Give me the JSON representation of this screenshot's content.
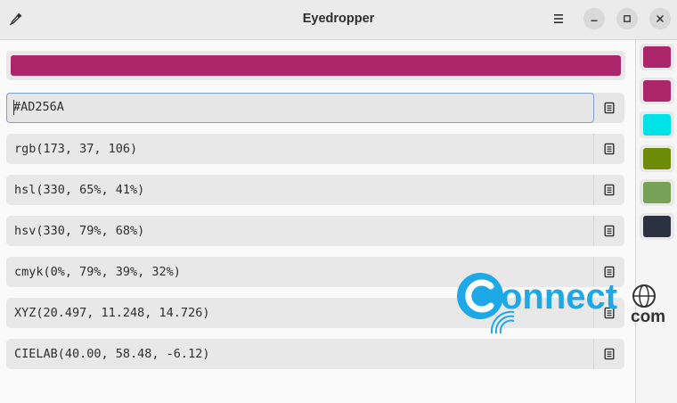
{
  "window": {
    "title": "Eyedropper",
    "icons": {
      "picker": "eyedropper-icon",
      "menu": "hamburger-menu-icon",
      "minimize": "minimize-icon",
      "maximize": "maximize-icon",
      "close": "close-icon"
    }
  },
  "current": {
    "color": "#AD256A",
    "formats": [
      {
        "name": "hex",
        "value": "#AD256A"
      },
      {
        "name": "rgb",
        "value": "rgb(173, 37, 106)"
      },
      {
        "name": "hsl",
        "value": "hsl(330, 65%, 41%)"
      },
      {
        "name": "hsv",
        "value": "hsv(330, 79%, 68%)"
      },
      {
        "name": "cmyk",
        "value": "cmyk(0%, 79%, 39%, 32%)"
      },
      {
        "name": "xyz",
        "value": "XYZ(20.497, 11.248, 14.726)"
      },
      {
        "name": "cielab",
        "value": "CIELAB(40.00, 58.48, -6.12)"
      }
    ],
    "copy_icon": "copy-icon"
  },
  "history": [
    "#AD256A",
    "#AD256A",
    "#00E3E6",
    "#6E8A09",
    "#76A157",
    "#2B3140"
  ],
  "watermark": {
    "brand": "onnect",
    "domain": "com",
    "colors": {
      "blue": "#1EA8E8",
      "dark": "#333333"
    }
  }
}
